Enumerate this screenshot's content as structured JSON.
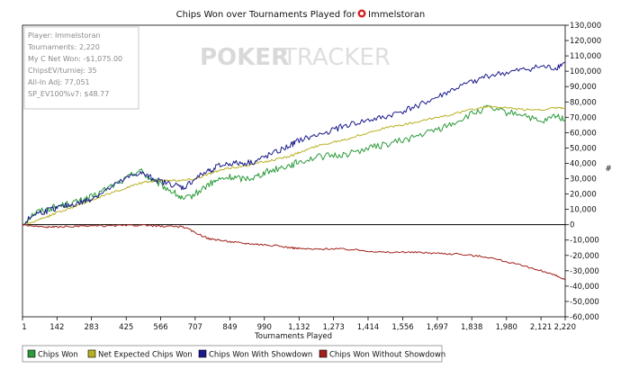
{
  "chart_data": {
    "type": "line",
    "title": "Chips Won over Tournaments Played for",
    "player_name": "Immelstoran",
    "xlabel": "Tournaments Played",
    "ylabel": "#",
    "xlim": [
      1,
      2220
    ],
    "ylim": [
      -60000,
      130000
    ],
    "x_ticks": [
      "1",
      "142",
      "283",
      "425",
      "566",
      "707",
      "849",
      "990",
      "1,132",
      "1,273",
      "1,414",
      "1,556",
      "1,697",
      "1,838",
      "1,980",
      "2,121",
      "2,220"
    ],
    "x_tick_values": [
      1,
      142,
      283,
      425,
      566,
      707,
      849,
      990,
      1132,
      1273,
      1414,
      1556,
      1697,
      1838,
      1980,
      2121,
      2220
    ],
    "y_ticks": [
      "130,000",
      "120,000",
      "110,000",
      "100,000",
      "90,000",
      "80,000",
      "70,000",
      "60,000",
      "50,000",
      "40,000",
      "30,000",
      "20,000",
      "10,000",
      "0",
      "-10,000",
      "-20,000",
      "-30,000",
      "-40,000",
      "-50,000",
      "-60,000"
    ],
    "y_tick_values": [
      130000,
      120000,
      110000,
      100000,
      90000,
      80000,
      70000,
      60000,
      50000,
      40000,
      30000,
      20000,
      10000,
      0,
      -10000,
      -20000,
      -30000,
      -40000,
      -50000,
      -60000
    ],
    "x": [
      1,
      50,
      100,
      142,
      200,
      250,
      283,
      350,
      425,
      480,
      520,
      566,
      620,
      660,
      707,
      760,
      800,
      849,
      900,
      950,
      990,
      1050,
      1100,
      1132,
      1200,
      1273,
      1330,
      1414,
      1480,
      1556,
      1620,
      1697,
      1760,
      1838,
      1900,
      1980,
      2050,
      2121,
      2180,
      2220
    ],
    "series": [
      {
        "name": "Chips Won",
        "color": "#2a9a3a",
        "values": [
          0,
          8000,
          10000,
          12000,
          14000,
          16000,
          18000,
          24000,
          30000,
          36000,
          30000,
          26000,
          21000,
          16000,
          20000,
          26000,
          29000,
          31000,
          30000,
          31000,
          34000,
          37000,
          39000,
          41000,
          44000,
          45000,
          46000,
          50000,
          52000,
          55000,
          58000,
          62000,
          66000,
          72000,
          76000,
          73000,
          72000,
          66000,
          71000,
          69000
        ]
      },
      {
        "name": "Net Expected Chips Won",
        "color": "#b8b020",
        "values": [
          0,
          2000,
          5000,
          8000,
          11000,
          14000,
          16000,
          20000,
          24000,
          27000,
          28000,
          29000,
          29000,
          29000,
          30000,
          33000,
          35000,
          37000,
          38000,
          40000,
          41000,
          43000,
          45000,
          47000,
          51000,
          54000,
          56000,
          60000,
          63000,
          65000,
          67000,
          70000,
          72000,
          75000,
          77000,
          76000,
          75000,
          75000,
          76000,
          76000
        ]
      },
      {
        "name": "Chips Won With Showdown",
        "color": "#1a1a8c",
        "values": [
          0,
          7000,
          9000,
          11000,
          13000,
          15000,
          17000,
          23000,
          30000,
          34000,
          31000,
          28000,
          26000,
          24000,
          30000,
          35000,
          38000,
          40000,
          40000,
          41000,
          44000,
          48000,
          52000,
          55000,
          58000,
          62000,
          65000,
          68000,
          70000,
          74000,
          78000,
          83000,
          88000,
          93000,
          97000,
          99000,
          101000,
          103000,
          102000,
          106000
        ]
      },
      {
        "name": "Chips Won Without Showdown",
        "color": "#a0201a",
        "values": [
          0,
          -1000,
          -1500,
          -1500,
          -1200,
          -1000,
          -800,
          -700,
          -500,
          -300,
          -600,
          -1000,
          -1000,
          -1500,
          -5000,
          -9000,
          -10000,
          -11000,
          -12000,
          -12500,
          -13000,
          -14000,
          -15000,
          -15500,
          -16000,
          -15500,
          -16000,
          -17000,
          -18000,
          -18000,
          -18000,
          -18500,
          -19000,
          -20000,
          -21000,
          -24000,
          -27000,
          -30000,
          -33000,
          -36000
        ]
      }
    ]
  },
  "info_box": [
    "Player: Immelstoran",
    "Tournaments: 2,220",
    "My C Net Won: -$1,075.00",
    "ChipsEV/turniej: 35",
    "All-In Adj: 77,051",
    "SP_EV100%v7: $48.77"
  ],
  "watermark": {
    "part1": "POKER",
    "part2": "TRACKER"
  },
  "legend": [
    {
      "label": "Chips Won",
      "color": "#2a9a3a"
    },
    {
      "label": "Net Expected Chips Won",
      "color": "#b8b020"
    },
    {
      "label": "Chips Won With Showdown",
      "color": "#1a1a8c"
    },
    {
      "label": "Chips Won Without Showdown",
      "color": "#a0201a"
    }
  ]
}
